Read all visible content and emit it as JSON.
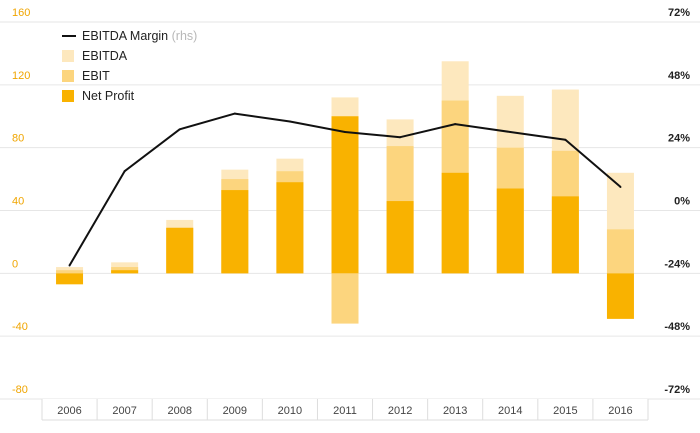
{
  "chart_data": {
    "type": "bar",
    "categories": [
      "2006",
      "2007",
      "2008",
      "2009",
      "2010",
      "2011",
      "2012",
      "2013",
      "2014",
      "2015",
      "2016"
    ],
    "series": [
      {
        "name": "EBITDA",
        "kind": "bar",
        "axis": "left",
        "color": "#fde8be",
        "values": [
          4,
          7,
          34,
          66,
          73,
          112,
          98,
          135,
          113,
          117,
          64
        ]
      },
      {
        "name": "EBIT",
        "kind": "bar",
        "axis": "left",
        "color": "#fcd57e",
        "values": [
          2,
          4,
          29,
          60,
          65,
          -32,
          81,
          110,
          80,
          78,
          28
        ]
      },
      {
        "name": "Net Profit",
        "kind": "bar",
        "axis": "left",
        "color": "#f9b200",
        "values": [
          -7,
          2,
          29,
          53,
          58,
          100,
          46,
          64,
          54,
          49,
          -29
        ]
      },
      {
        "name": "EBITDA Margin",
        "note": "(rhs)",
        "kind": "line",
        "axis": "right",
        "color": "#111111",
        "values": [
          -21,
          15,
          31,
          37,
          34,
          30,
          28,
          33,
          30,
          27,
          9
        ]
      }
    ],
    "y_left": {
      "min": -80,
      "max": 160,
      "ticks": [
        -80,
        -40,
        0,
        40,
        80,
        120,
        160
      ],
      "tick_labels": [
        "-80",
        "-40",
        "0",
        "40",
        "80",
        "120",
        "160"
      ]
    },
    "y_right": {
      "min": -72,
      "max": 72,
      "ticks": [
        -72,
        -48,
        -24,
        0,
        24,
        48,
        72
      ],
      "tick_labels": [
        "-72%",
        "-48%",
        "-24%",
        "0%",
        "24%",
        "48%",
        "72%"
      ]
    },
    "grid": true,
    "legend_position": "top-left"
  }
}
